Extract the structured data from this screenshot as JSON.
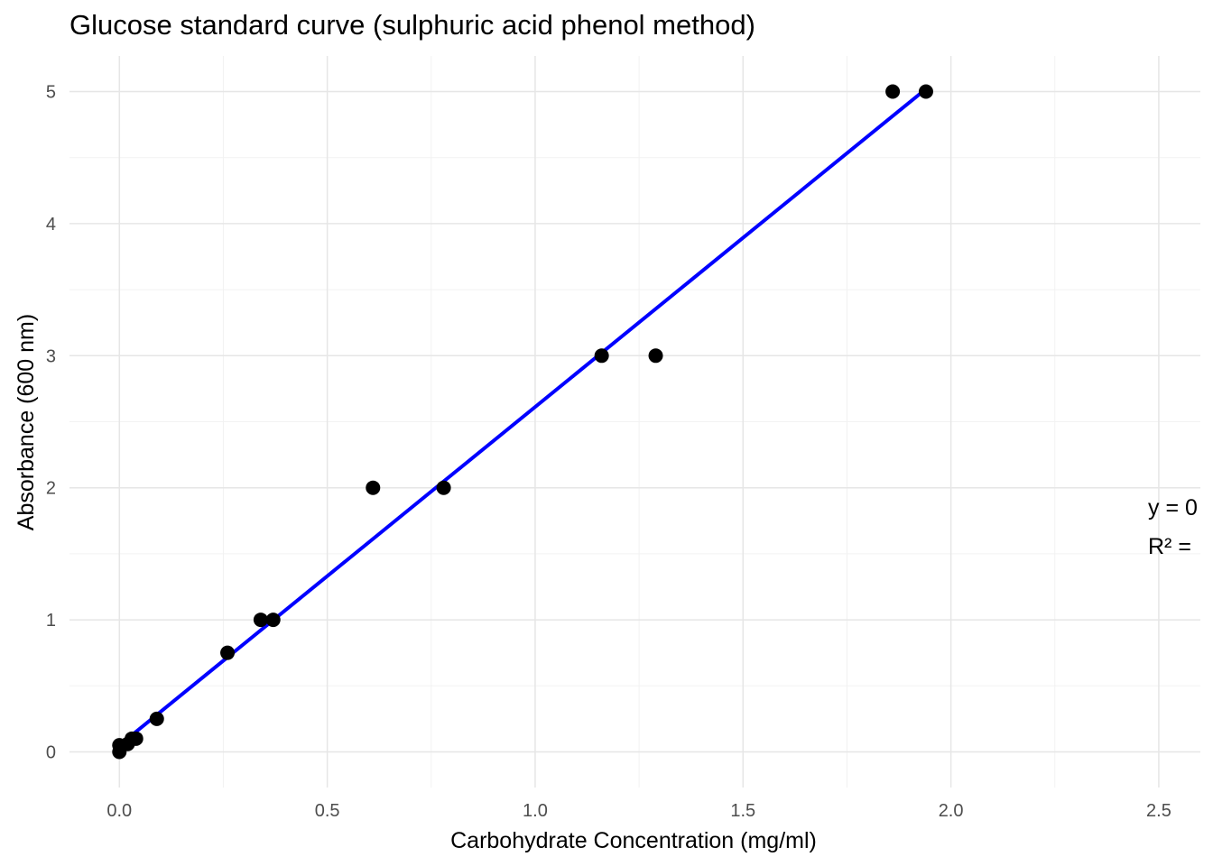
{
  "chart_data": {
    "type": "scatter",
    "title": "Glucose standard curve (sulphuric acid phenol method)",
    "xlabel": "Carbohydrate Concentration (mg/ml)",
    "ylabel": "Absorbance (600 nm)",
    "xlim": [
      -0.12,
      2.6
    ],
    "ylim": [
      -0.27,
      5.27
    ],
    "x_ticks": [
      0.0,
      0.5,
      1.0,
      1.5,
      2.0,
      2.5
    ],
    "x_tick_labels": [
      "0.0",
      "0.5",
      "1.0",
      "1.5",
      "2.0",
      "2.5"
    ],
    "y_ticks": [
      0,
      1,
      2,
      3,
      4,
      5
    ],
    "y_tick_labels": [
      "0",
      "1",
      "2",
      "3",
      "4",
      "5"
    ],
    "grid": true,
    "series": [
      {
        "points": [
          {
            "x": 0.0,
            "y": 0.0
          },
          {
            "x": 0.0,
            "y": 0.05
          },
          {
            "x": 0.02,
            "y": 0.06
          },
          {
            "x": 0.03,
            "y": 0.1
          },
          {
            "x": 0.04,
            "y": 0.1
          },
          {
            "x": 0.09,
            "y": 0.25
          },
          {
            "x": 0.26,
            "y": 0.75
          },
          {
            "x": 0.34,
            "y": 1.0
          },
          {
            "x": 0.37,
            "y": 1.0
          },
          {
            "x": 0.61,
            "y": 2.0
          },
          {
            "x": 0.78,
            "y": 2.0
          },
          {
            "x": 1.16,
            "y": 3.0
          },
          {
            "x": 1.29,
            "y": 3.0
          },
          {
            "x": 1.86,
            "y": 5.0
          },
          {
            "x": 1.94,
            "y": 5.0
          }
        ],
        "color": "#000000"
      }
    ],
    "fit_line": {
      "x_start": 0.0,
      "y_start": 0.05,
      "x_end": 1.94,
      "y_end": 5.02,
      "color": "#0000ff"
    },
    "annotations": [
      "y = 0",
      "R² ="
    ]
  }
}
